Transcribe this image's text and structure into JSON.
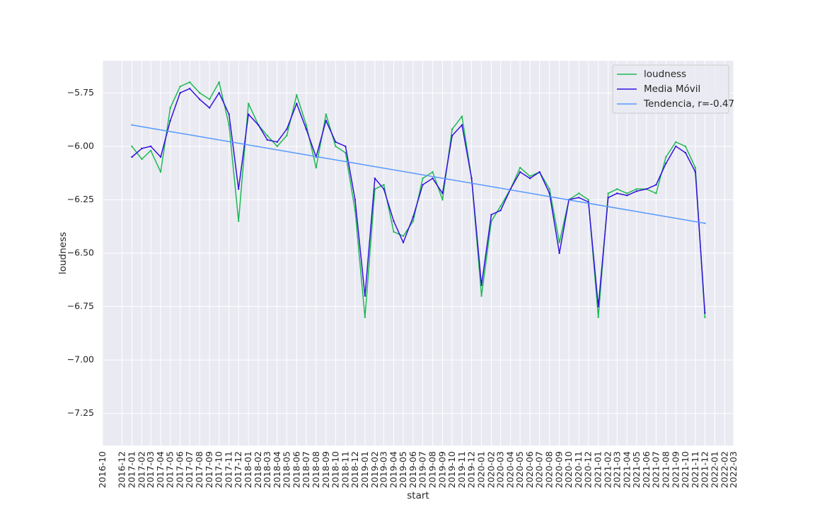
{
  "chart_data": {
    "type": "line",
    "title": "",
    "xlabel": "start",
    "ylabel": "loudness",
    "x_range": [
      "2016-10-01",
      "2022-03-01"
    ],
    "ylim": [
      -7.4,
      -5.6
    ],
    "yticks": [
      -5.75,
      -6.0,
      -6.25,
      -6.5,
      -6.75,
      -7.0,
      -7.25
    ],
    "ytick_labels": [
      "−5.75",
      "−6.00",
      "−6.25",
      "−6.50",
      "−6.75",
      "−7.00",
      "−7.25"
    ],
    "xtick_labels": [
      "2016-10",
      "2016-12",
      "2017-01",
      "2017-02",
      "2017-03",
      "2017-04",
      "2017-05",
      "2017-06",
      "2017-07",
      "2017-08",
      "2017-09",
      "2017-10",
      "2017-11",
      "2017-12",
      "2018-01",
      "2018-02",
      "2018-03",
      "2018-04",
      "2018-05",
      "2018-06",
      "2018-07",
      "2018-08",
      "2018-09",
      "2018-10",
      "2018-11",
      "2018-12",
      "2019-01",
      "2019-02",
      "2019-03",
      "2019-04",
      "2019-05",
      "2019-06",
      "2019-07",
      "2019-08",
      "2019-09",
      "2019-10",
      "2019-11",
      "2019-12",
      "2020-01",
      "2020-02",
      "2020-03",
      "2020-04",
      "2020-05",
      "2020-06",
      "2020-07",
      "2020-08",
      "2020-09",
      "2020-10",
      "2020-11",
      "2020-12",
      "2021-01",
      "2021-02",
      "2021-03",
      "2021-04",
      "2021-05",
      "2021-06",
      "2021-07",
      "2021-08",
      "2021-09",
      "2021-10",
      "2021-11",
      "2021-12",
      "2022-01",
      "2022-02",
      "2022-03"
    ],
    "grid": true,
    "legend_position": "top-right",
    "series": [
      {
        "name": "loudness",
        "color": "#1db954",
        "x": [
          "2017-01",
          "2017-02",
          "2017-03",
          "2017-04",
          "2017-05",
          "2017-06",
          "2017-07",
          "2017-08",
          "2017-09",
          "2017-10",
          "2017-11",
          "2017-12",
          "2018-01",
          "2018-02",
          "2018-03",
          "2018-04",
          "2018-05",
          "2018-06",
          "2018-07",
          "2018-08",
          "2018-09",
          "2018-10",
          "2018-11",
          "2018-12",
          "2019-01",
          "2019-02",
          "2019-03",
          "2019-04",
          "2019-05",
          "2019-06",
          "2019-07",
          "2019-08",
          "2019-09",
          "2019-10",
          "2019-11",
          "2019-12",
          "2020-01",
          "2020-02",
          "2020-03",
          "2020-04",
          "2020-05",
          "2020-06",
          "2020-07",
          "2020-08",
          "2020-09",
          "2020-10",
          "2020-11",
          "2020-12",
          "2021-01",
          "2021-02",
          "2021-03",
          "2021-04",
          "2021-05",
          "2021-06",
          "2021-07",
          "2021-08",
          "2021-09",
          "2021-10",
          "2021-11",
          "2021-12"
        ],
        "values": [
          -6.0,
          -6.06,
          -6.02,
          -6.12,
          -5.82,
          -5.72,
          -5.7,
          -5.75,
          -5.78,
          -5.7,
          -5.9,
          -6.35,
          -5.8,
          -5.9,
          -5.95,
          -6.0,
          -5.95,
          -5.76,
          -5.9,
          -6.1,
          -5.85,
          -6.0,
          -6.03,
          -6.3,
          -6.8,
          -6.2,
          -6.18,
          -6.4,
          -6.42,
          -6.35,
          -6.15,
          -6.12,
          -6.25,
          -5.92,
          -5.86,
          -6.15,
          -6.7,
          -6.35,
          -6.28,
          -6.2,
          -6.1,
          -6.14,
          -6.12,
          -6.2,
          -6.45,
          -6.25,
          -6.22,
          -6.25,
          -6.8,
          -6.22,
          -6.2,
          -6.22,
          -6.2,
          -6.2,
          -6.22,
          -6.05,
          -5.98,
          -6.0,
          -6.1,
          -6.8
        ]
      },
      {
        "name": "Media Móvil",
        "color": "#3311dd",
        "x": [
          "2017-01",
          "2017-02",
          "2017-03",
          "2017-04",
          "2017-05",
          "2017-06",
          "2017-07",
          "2017-08",
          "2017-09",
          "2017-10",
          "2017-11",
          "2017-12",
          "2018-01",
          "2018-02",
          "2018-03",
          "2018-04",
          "2018-05",
          "2018-06",
          "2018-07",
          "2018-08",
          "2018-09",
          "2018-10",
          "2018-11",
          "2018-12",
          "2019-01",
          "2019-02",
          "2019-03",
          "2019-04",
          "2019-05",
          "2019-06",
          "2019-07",
          "2019-08",
          "2019-09",
          "2019-10",
          "2019-11",
          "2019-12",
          "2020-01",
          "2020-02",
          "2020-03",
          "2020-04",
          "2020-05",
          "2020-06",
          "2020-07",
          "2020-08",
          "2020-09",
          "2020-10",
          "2020-11",
          "2020-12",
          "2021-01",
          "2021-02",
          "2021-03",
          "2021-04",
          "2021-05",
          "2021-06",
          "2021-07",
          "2021-08",
          "2021-09",
          "2021-10",
          "2021-11",
          "2021-12"
        ],
        "values": [
          -6.05,
          -6.01,
          -6.0,
          -6.05,
          -5.88,
          -5.75,
          -5.73,
          -5.78,
          -5.82,
          -5.75,
          -5.85,
          -6.2,
          -5.85,
          -5.9,
          -5.97,
          -5.98,
          -5.92,
          -5.8,
          -5.92,
          -6.05,
          -5.88,
          -5.98,
          -6.0,
          -6.25,
          -6.7,
          -6.15,
          -6.2,
          -6.35,
          -6.45,
          -6.33,
          -6.18,
          -6.15,
          -6.22,
          -5.95,
          -5.9,
          -6.15,
          -6.65,
          -6.32,
          -6.3,
          -6.2,
          -6.12,
          -6.15,
          -6.12,
          -6.22,
          -6.5,
          -6.25,
          -6.24,
          -6.26,
          -6.75,
          -6.24,
          -6.22,
          -6.23,
          -6.21,
          -6.2,
          -6.18,
          -6.08,
          -6.0,
          -6.03,
          -6.12,
          -6.78
        ]
      },
      {
        "name": "Tendencia, r=-0.47",
        "color": "#5599ff",
        "x": [
          "2017-01",
          "2021-12"
        ],
        "values": [
          -5.9,
          -6.36
        ]
      }
    ]
  }
}
